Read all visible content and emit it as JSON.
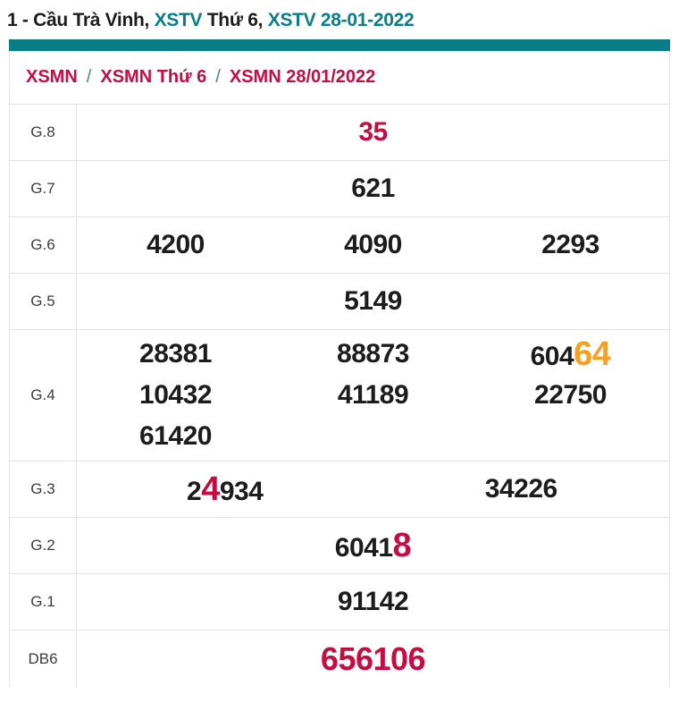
{
  "page_title": {
    "prefix": "1 - Cầu Trà Vinh, ",
    "highlight1": "XSTV",
    "middle": " Thứ 6, ",
    "highlight2": "XSTV 28-01-2022"
  },
  "breadcrumb": {
    "separator": "/",
    "items": [
      "XSMN",
      "XSMN Thứ 6",
      "XSMN 28/01/2022"
    ]
  },
  "colors": {
    "teal": "#0A7E86",
    "red": "#C50D41",
    "orange": "#F6A21E",
    "text": "#1C1C1C",
    "border": "#E3E3E3"
  },
  "results": {
    "rows": [
      {
        "label": "G.8",
        "cols": 1,
        "lines": [
          [
            [
              {
                "t": "35",
                "s": "red"
              }
            ]
          ]
        ]
      },
      {
        "label": "G.7",
        "cols": 1,
        "lines": [
          [
            [
              {
                "t": "621"
              }
            ]
          ]
        ]
      },
      {
        "label": "G.6",
        "cols": 3,
        "lines": [
          [
            [
              {
                "t": "4200"
              }
            ],
            [
              {
                "t": "4090"
              }
            ],
            [
              {
                "t": "2293"
              }
            ]
          ]
        ]
      },
      {
        "label": "G.5",
        "cols": 1,
        "lines": [
          [
            [
              {
                "t": "5149"
              }
            ]
          ]
        ]
      },
      {
        "label": "G.4",
        "cols": 3,
        "lines": [
          [
            [
              {
                "t": "28381"
              }
            ],
            [
              {
                "t": "88873"
              }
            ],
            [
              {
                "t": "604"
              },
              {
                "t": "64",
                "s": "orange lg"
              }
            ]
          ],
          [
            [
              {
                "t": "10432"
              }
            ],
            [
              {
                "t": "41189"
              }
            ],
            [
              {
                "t": "22750"
              }
            ]
          ],
          [
            [
              {
                "t": "61420"
              }
            ],
            [],
            []
          ]
        ]
      },
      {
        "label": "G.3",
        "cols": 2,
        "lines": [
          [
            [
              {
                "t": "2"
              },
              {
                "t": "4",
                "s": "red lg"
              },
              {
                "t": "934"
              }
            ],
            [
              {
                "t": "34226"
              }
            ]
          ]
        ]
      },
      {
        "label": "G.2",
        "cols": 1,
        "lines": [
          [
            [
              {
                "t": "6041"
              },
              {
                "t": "8",
                "s": "red lg"
              }
            ]
          ]
        ]
      },
      {
        "label": "G.1",
        "cols": 1,
        "lines": [
          [
            [
              {
                "t": "91142"
              }
            ]
          ]
        ]
      },
      {
        "label": "DB6",
        "cols": 1,
        "size": "lg",
        "lines": [
          [
            [
              {
                "t": "656106",
                "s": "red"
              }
            ]
          ]
        ]
      }
    ]
  }
}
